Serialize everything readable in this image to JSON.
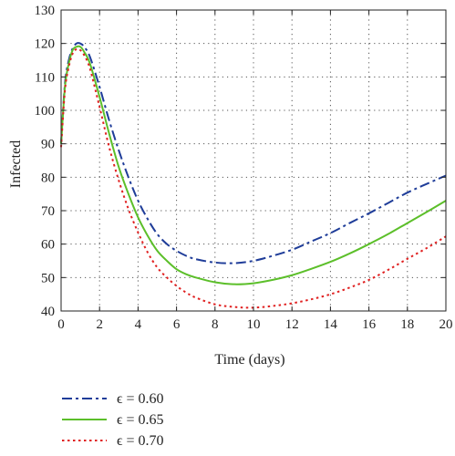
{
  "chart_data": {
    "type": "line",
    "title": "",
    "xlabel": "Time (days)",
    "ylabel": "Infected",
    "xlim": [
      0,
      20
    ],
    "ylim": [
      40,
      130
    ],
    "xticks": [
      "0",
      "2",
      "4",
      "6",
      "8",
      "10",
      "12",
      "14",
      "16",
      "18",
      "20"
    ],
    "yticks": [
      "40",
      "50",
      "60",
      "70",
      "80",
      "90",
      "100",
      "110",
      "120",
      "130"
    ],
    "grid": true,
    "legend_position": "bottom-left",
    "series": [
      {
        "name": "ϵ = 0.60",
        "color": "#1f3d99",
        "style": "dashdot",
        "x": [
          0,
          0.2,
          0.4,
          0.6,
          0.8,
          1.0,
          1.2,
          1.5,
          2,
          2.5,
          3,
          3.5,
          4,
          4.5,
          5,
          5.5,
          6,
          6.5,
          7,
          8,
          9,
          10,
          11,
          12,
          13,
          14,
          15,
          16,
          17,
          18,
          19,
          20
        ],
        "y": [
          90,
          108,
          115,
          118.5,
          120,
          120,
          119,
          116,
          107,
          97,
          88,
          80,
          73,
          67.5,
          63,
          60,
          58,
          56.5,
          55.5,
          54.5,
          54.3,
          55,
          56.5,
          58.3,
          60.8,
          63.3,
          66.3,
          69.2,
          72.3,
          75.4,
          78,
          80.5
        ]
      },
      {
        "name": "ϵ = 0.65",
        "color": "#5cbf2a",
        "style": "solid",
        "x": [
          0,
          0.2,
          0.4,
          0.6,
          0.8,
          1.0,
          1.2,
          1.5,
          2,
          2.5,
          3,
          3.5,
          4,
          4.5,
          5,
          5.5,
          6,
          6.5,
          7,
          8,
          9,
          10,
          11,
          12,
          13,
          14,
          15,
          16,
          17,
          18,
          19,
          20
        ],
        "y": [
          90,
          107,
          114,
          118,
          119,
          119,
          117.5,
          114,
          104,
          93,
          83,
          75,
          68,
          62.5,
          58,
          55,
          52.5,
          51,
          50,
          48.6,
          48,
          48.3,
          49.3,
          50.7,
          52.6,
          54.7,
          57.2,
          60,
          63,
          66.3,
          69.6,
          73
        ]
      },
      {
        "name": "ϵ = 0.70",
        "color": "#e02020",
        "style": "dotted",
        "x": [
          0,
          0.2,
          0.4,
          0.6,
          0.8,
          1.0,
          1.2,
          1.5,
          2,
          2.5,
          3,
          3.5,
          4,
          4.5,
          5,
          5.5,
          6,
          6.5,
          7,
          8,
          9,
          10,
          11,
          12,
          13,
          14,
          15,
          16,
          17,
          18,
          19,
          20
        ],
        "y": [
          89,
          106,
          113,
          117,
          118.3,
          118,
          116.5,
          112.5,
          101,
          89,
          79,
          70.5,
          63.5,
          57.5,
          53,
          50,
          47.5,
          45.5,
          44,
          42,
          41.2,
          41,
          41.5,
          42.3,
          43.5,
          45,
          47,
          49.3,
          52.3,
          55.6,
          58.8,
          62.3
        ]
      }
    ]
  }
}
